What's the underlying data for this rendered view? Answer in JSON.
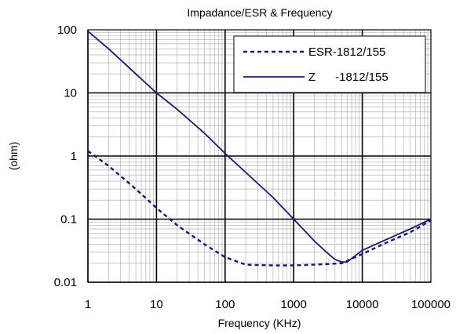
{
  "chart_data": {
    "type": "line",
    "title": "Impadance/ESR & Frequency",
    "xlabel": "Frequency  (KHz)",
    "ylabel": "(ohm)",
    "x_scale": "log",
    "y_scale": "log",
    "xlim": [
      1,
      100000
    ],
    "ylim": [
      0.01,
      100
    ],
    "grid": true,
    "legend_position": "top-right",
    "x_ticks": [
      "1",
      "10",
      "100",
      "1000",
      "10000",
      "100000"
    ],
    "y_ticks": [
      "100",
      "10",
      "1",
      "0.1",
      "0.01"
    ],
    "series": [
      {
        "name": "ESR-1812/155",
        "style": "dashed",
        "color": "#1a1a6e",
        "x": [
          1,
          2,
          5,
          10,
          20,
          50,
          100,
          200,
          500,
          1000,
          2000,
          5000,
          10000,
          20000,
          50000,
          100000
        ],
        "y": [
          1.2,
          0.7,
          0.3,
          0.15,
          0.08,
          0.04,
          0.025,
          0.019,
          0.0185,
          0.0185,
          0.019,
          0.02,
          0.028,
          0.04,
          0.062,
          0.095
        ]
      },
      {
        "name": "Z      -1812/155",
        "style": "solid",
        "color": "#1a1a6e",
        "x": [
          1,
          2,
          5,
          10,
          20,
          50,
          100,
          200,
          500,
          1000,
          2000,
          3000,
          4000,
          5000,
          6000,
          10000,
          20000,
          50000,
          100000
        ],
        "y": [
          95,
          50,
          20,
          10,
          5.5,
          2.3,
          1.1,
          0.55,
          0.22,
          0.1,
          0.045,
          0.03,
          0.023,
          0.021,
          0.021,
          0.032,
          0.045,
          0.07,
          0.1
        ]
      }
    ]
  }
}
